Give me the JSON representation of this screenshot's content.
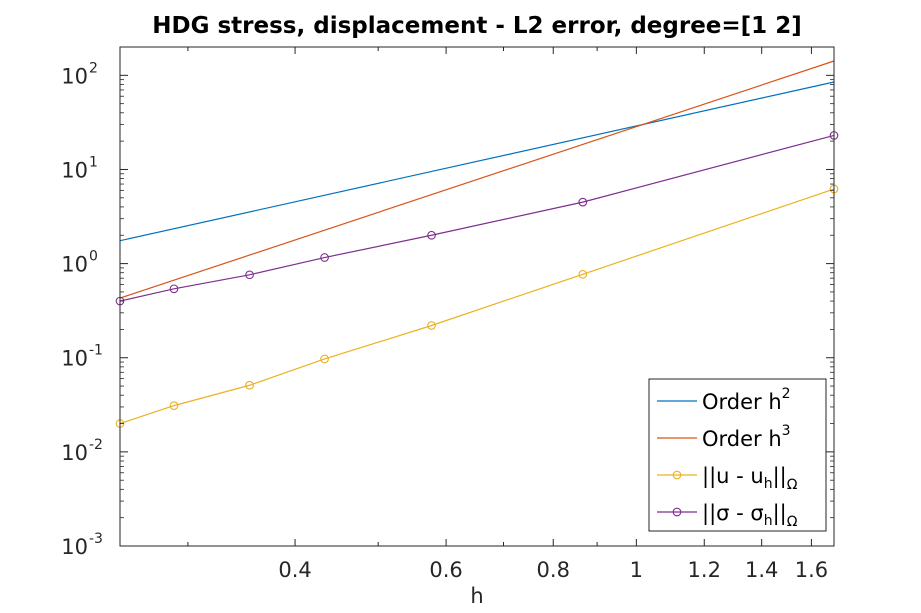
{
  "chart_data": {
    "type": "line",
    "title": "HDG stress, displacement - L2 error, degree=[1  2]",
    "xlabel": "h",
    "ylabel": "",
    "xscale": "log",
    "yscale": "log",
    "xlim": [
      0.25,
      1.7
    ],
    "ylim": [
      0.001,
      200
    ],
    "x_ticks": [
      {
        "value": 0.4,
        "label": "0.4"
      },
      {
        "value": 0.6,
        "label": "0.6"
      },
      {
        "value": 0.8,
        "label": "0.8"
      },
      {
        "value": 1.0,
        "label": "1"
      },
      {
        "value": 1.2,
        "label": "1.2"
      },
      {
        "value": 1.4,
        "label": "1.4"
      },
      {
        "value": 1.6,
        "label": "1.6"
      }
    ],
    "y_ticks": [
      {
        "value": 0.001,
        "base": "10",
        "exp": "-3"
      },
      {
        "value": 0.01,
        "base": "10",
        "exp": "-2"
      },
      {
        "value": 0.1,
        "base": "10",
        "exp": "-1"
      },
      {
        "value": 1,
        "base": "10",
        "exp": "0"
      },
      {
        "value": 10,
        "base": "10",
        "exp": "1"
      },
      {
        "value": 100,
        "base": "10",
        "exp": "2"
      }
    ],
    "grid": false,
    "legend_position": "bottom-right",
    "series": [
      {
        "name": "Order h2",
        "legend_main": "Order h",
        "legend_sup": "2",
        "legend_sub": "",
        "legend_tail": "",
        "color": "#0072BD",
        "marker": "none",
        "x": [
          0.25,
          1.7
        ],
        "y": [
          1.75,
          85
        ]
      },
      {
        "name": "Order h3",
        "legend_main": "Order h",
        "legend_sup": "3",
        "legend_sub": "",
        "legend_tail": "",
        "color": "#D95319",
        "marker": "none",
        "x": [
          0.25,
          1.7
        ],
        "y": [
          0.43,
          142
        ]
      },
      {
        "name": "||u - uh||Ω",
        "legend_main": "||u - u",
        "legend_sup": "",
        "legend_sub": "h",
        "legend_tail": "||",
        "legend_tail_sub": "Ω",
        "color": "#EDB120",
        "marker": "circle",
        "x": [
          0.25,
          0.289,
          0.354,
          0.433,
          0.577,
          0.866,
          1.7
        ],
        "y": [
          0.02,
          0.031,
          0.051,
          0.097,
          0.22,
          0.77,
          6.2
        ]
      },
      {
        "name": "||σ - σh||Ω",
        "legend_main": "||σ - σ",
        "legend_sup": "",
        "legend_sub": "h",
        "legend_tail": "||",
        "legend_tail_sub": "Ω",
        "color": "#7E2F8E",
        "marker": "circle",
        "x": [
          0.25,
          0.289,
          0.354,
          0.433,
          0.577,
          0.866,
          1.7
        ],
        "y": [
          0.4,
          0.54,
          0.76,
          1.16,
          2.0,
          4.5,
          23
        ]
      }
    ]
  }
}
